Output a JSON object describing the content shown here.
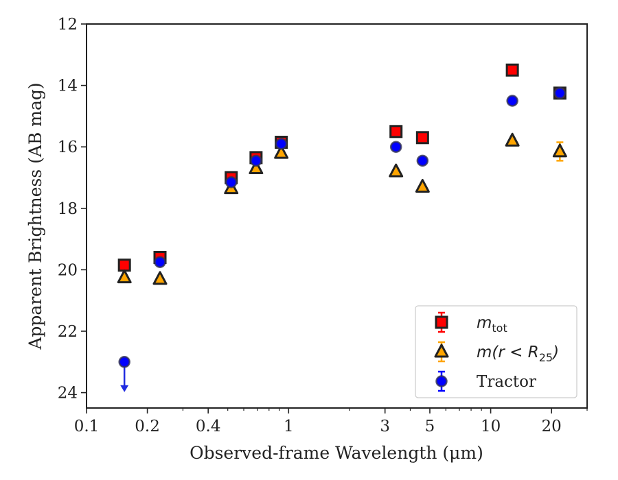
{
  "chart_data": {
    "type": "scatter",
    "xlabel": "Observed-frame Wavelength (μm)",
    "ylabel": "Apparent Brightness (AB mag)",
    "x_scale": "log",
    "xlim": [
      0.1,
      30
    ],
    "ylim": [
      24.5,
      12
    ],
    "y_inverted": true,
    "grid": false,
    "legend_position": "lower-right",
    "x_ticks": [
      {
        "value": 0.1,
        "label": "0.1"
      },
      {
        "value": 0.2,
        "label": "0.2"
      },
      {
        "value": 0.4,
        "label": "0.4"
      },
      {
        "value": 1,
        "label": "1"
      },
      {
        "value": 3,
        "label": "3"
      },
      {
        "value": 5,
        "label": "5"
      },
      {
        "value": 10,
        "label": "10"
      },
      {
        "value": 20,
        "label": "20"
      }
    ],
    "y_ticks": [
      {
        "value": 12,
        "label": "12"
      },
      {
        "value": 14,
        "label": "14"
      },
      {
        "value": 16,
        "label": "16"
      },
      {
        "value": 18,
        "label": "18"
      },
      {
        "value": 20,
        "label": "20"
      },
      {
        "value": 22,
        "label": "22"
      },
      {
        "value": 24,
        "label": "24"
      }
    ],
    "series": [
      {
        "name": "m_tot",
        "legend_label": "m",
        "legend_sub": "tot",
        "marker": "square",
        "color": "#ff0000",
        "edge": "#222222",
        "points": [
          {
            "x": 0.154,
            "y": 19.85
          },
          {
            "x": 0.231,
            "y": 19.6
          },
          {
            "x": 0.52,
            "y": 17.0
          },
          {
            "x": 0.69,
            "y": 16.35
          },
          {
            "x": 0.92,
            "y": 15.85
          },
          {
            "x": 3.4,
            "y": 15.5
          },
          {
            "x": 4.6,
            "y": 15.7
          },
          {
            "x": 12.8,
            "y": 13.5
          },
          {
            "x": 22.0,
            "y": 14.25
          }
        ]
      },
      {
        "name": "m(r<R_25)",
        "legend_label": "m(r < R",
        "legend_sub": "25",
        "legend_tail": ")",
        "marker": "triangle",
        "color": "#ffa500",
        "edge": "#222222",
        "points": [
          {
            "x": 0.154,
            "y": 20.25
          },
          {
            "x": 0.231,
            "y": 20.3
          },
          {
            "x": 0.52,
            "y": 17.35
          },
          {
            "x": 0.69,
            "y": 16.7
          },
          {
            "x": 0.92,
            "y": 16.2
          },
          {
            "x": 3.4,
            "y": 16.8
          },
          {
            "x": 4.6,
            "y": 17.3
          },
          {
            "x": 12.8,
            "y": 15.8
          },
          {
            "x": 22.0,
            "y": 16.15,
            "err": 0.3
          }
        ]
      },
      {
        "name": "Tractor",
        "legend_label": "Tractor",
        "marker": "circle",
        "color": "#0000ff",
        "edge": "#333355",
        "points": [
          {
            "x": 0.154,
            "y": 23.0,
            "upper_limit": true
          },
          {
            "x": 0.231,
            "y": 19.75
          },
          {
            "x": 0.52,
            "y": 17.15
          },
          {
            "x": 0.69,
            "y": 16.45
          },
          {
            "x": 0.92,
            "y": 15.9
          },
          {
            "x": 3.4,
            "y": 16.0
          },
          {
            "x": 4.6,
            "y": 16.45
          },
          {
            "x": 12.8,
            "y": 14.5
          },
          {
            "x": 22.0,
            "y": 14.25
          }
        ]
      }
    ]
  }
}
